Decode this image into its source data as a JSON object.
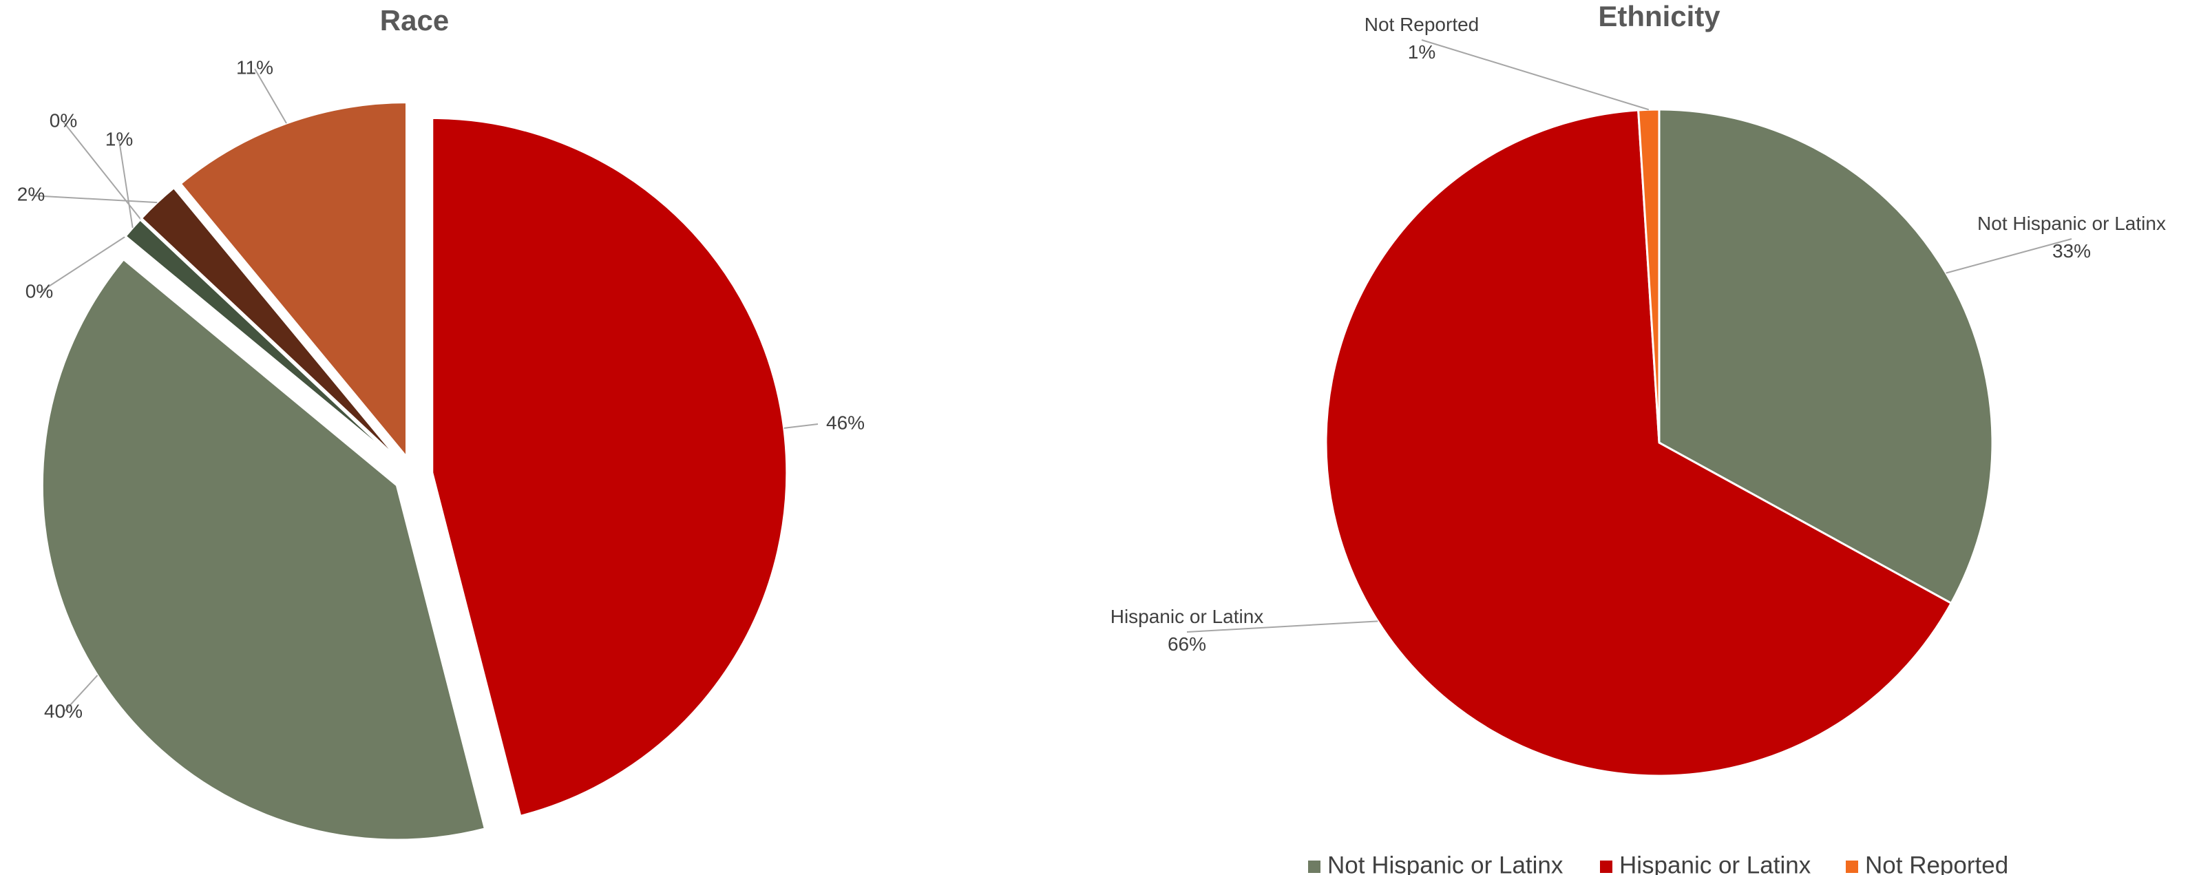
{
  "chart_data": [
    {
      "type": "pie",
      "title": "Race",
      "values": [
        46,
        40,
        0,
        1,
        0,
        2,
        11
      ],
      "value_labels": [
        "46%",
        "40%",
        "0%",
        "1%",
        "0%",
        "2%",
        "11%"
      ],
      "colors": [
        "#C00000",
        "#6F7C63",
        "#44543F",
        "#44543F",
        "#C00000",
        "#5E2A16",
        "#BC572C"
      ],
      "exploded": true
    },
    {
      "type": "pie",
      "title": "Ethnicity",
      "categories": [
        "Not Hispanic or Latinx",
        "Hispanic or Latinx",
        "Not Reported"
      ],
      "values": [
        33,
        66,
        1
      ],
      "value_labels": [
        "33%",
        "66%",
        "1%"
      ],
      "colors": [
        "#6F7C63",
        "#C00000",
        "#F26B1D"
      ],
      "legend": "bottom"
    }
  ]
}
